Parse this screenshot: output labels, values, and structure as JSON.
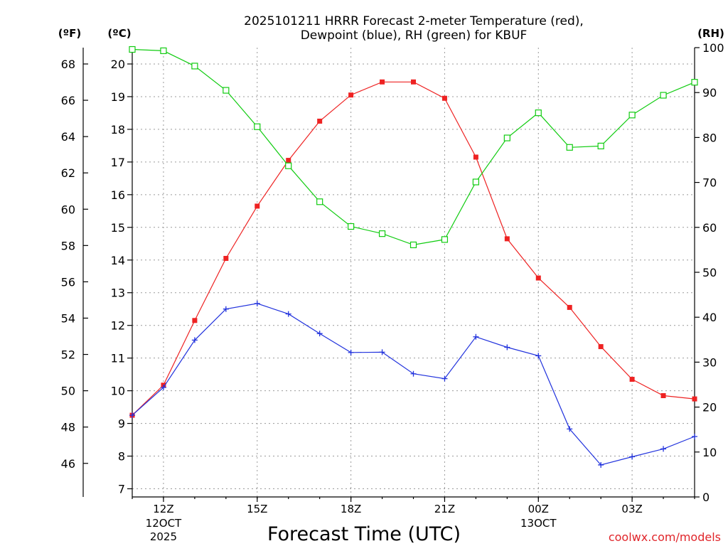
{
  "chart_data": {
    "type": "line",
    "title_line1": "2025101211 HRRR Forecast 2-meter Temperature (red),",
    "title_line2": "Dewpoint (blue), RH (green) for KBUF",
    "xlabel": "Forecast Time (UTC)",
    "credit": "coolwx.com/models",
    "left_unit_f": "(ºF)",
    "left_unit_c": "(ºC)",
    "right_unit": "(RH)",
    "x_hours": [
      11,
      12,
      13,
      14,
      15,
      16,
      17,
      18,
      19,
      20,
      21,
      22,
      23,
      24,
      25,
      26,
      27,
      28,
      29
    ],
    "x_range": [
      11,
      29
    ],
    "c_range": [
      6.75,
      20.5
    ],
    "rh_range": [
      0,
      100
    ],
    "x_ticks": [
      {
        "hour": 12,
        "l1": "12Z",
        "l2": "12OCT",
        "l3": "2025"
      },
      {
        "hour": 15,
        "l1": "15Z",
        "l2": "",
        "l3": ""
      },
      {
        "hour": 18,
        "l1": "18Z",
        "l2": "",
        "l3": ""
      },
      {
        "hour": 21,
        "l1": "21Z",
        "l2": "",
        "l3": ""
      },
      {
        "hour": 24,
        "l1": "00Z",
        "l2": "13OCT",
        "l3": ""
      },
      {
        "hour": 27,
        "l1": "03Z",
        "l2": "",
        "l3": ""
      }
    ],
    "c_ticks": [
      7,
      8,
      9,
      10,
      11,
      12,
      13,
      14,
      15,
      16,
      17,
      18,
      19,
      20
    ],
    "f_ticks": [
      46,
      48,
      50,
      52,
      54,
      56,
      58,
      60,
      62,
      64,
      66,
      68
    ],
    "rh_ticks": [
      0,
      10,
      20,
      30,
      40,
      50,
      60,
      70,
      80,
      90,
      100
    ],
    "series": [
      {
        "name": "Temperature",
        "color": "#ee2222",
        "marker": "filled-square",
        "values": [
          9.25,
          10.17,
          12.15,
          14.05,
          15.65,
          17.05,
          18.25,
          19.05,
          19.45,
          19.45,
          18.95,
          17.15,
          14.65,
          13.45,
          12.55,
          11.35,
          10.35,
          9.85,
          9.75
        ]
      },
      {
        "name": "Dewpoint",
        "color": "#2233dd",
        "marker": "plus",
        "values": [
          9.25,
          10.1,
          11.55,
          12.5,
          12.67,
          12.35,
          11.75,
          11.17,
          11.18,
          10.52,
          10.37,
          11.65,
          11.33,
          11.07,
          8.83,
          7.73,
          7.98,
          8.22,
          8.6
        ]
      },
      {
        "name": "RH",
        "color": "#11cc11",
        "marker": "open-square",
        "values": [
          99.6,
          99.3,
          95.9,
          90.5,
          82.4,
          73.7,
          65.7,
          60.2,
          58.6,
          56.1,
          57.3,
          70.1,
          79.9,
          85.5,
          77.8,
          78.1,
          85.0,
          89.4,
          92.3
        ]
      }
    ]
  }
}
